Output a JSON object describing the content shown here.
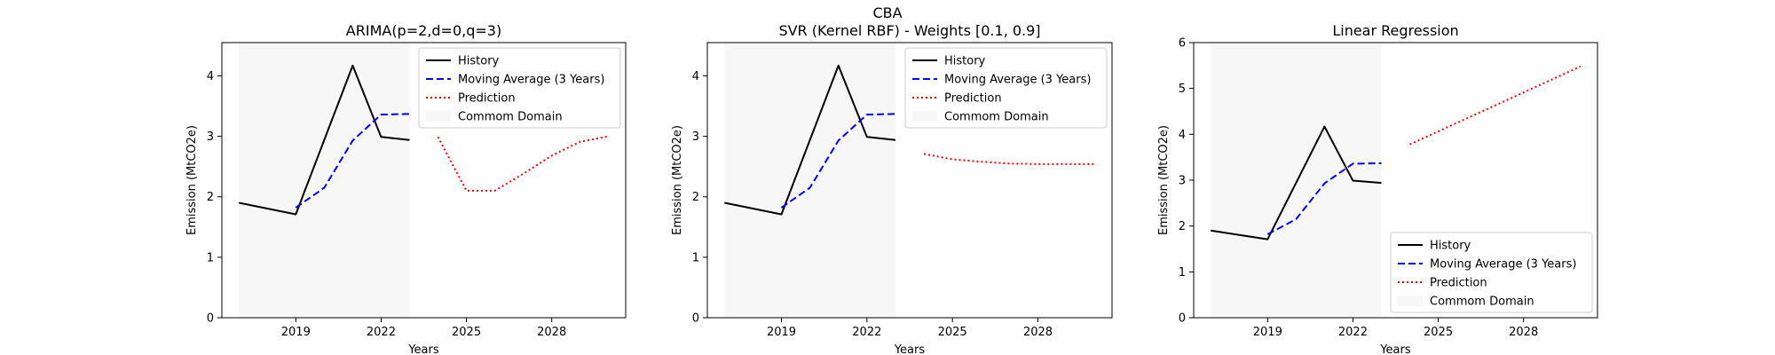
{
  "figure": {
    "suptitle": "CBA"
  },
  "chart_data": [
    {
      "type": "line",
      "title": "ARIMA(p=2,d=0,q=3)",
      "xlabel": "Years",
      "ylabel": "Emission (MtCO2e)",
      "xlim": [
        2016.4,
        2030.6
      ],
      "ylim": [
        0,
        4.55
      ],
      "xticks": [
        2019,
        2022,
        2025,
        2028
      ],
      "yticks": [
        0,
        1,
        2,
        3,
        4
      ],
      "legend": "top-right",
      "common_domain": [
        2017,
        2023
      ],
      "series": [
        {
          "name": "History",
          "color": "#000000",
          "dash": "solid",
          "points": [
            [
              2017,
              1.9
            ],
            [
              2019,
              1.71
            ],
            [
              2021,
              4.17
            ],
            [
              2022,
              2.99
            ],
            [
              2023,
              2.94
            ]
          ]
        },
        {
          "name": "Moving Average (3 Years)",
          "color": "#0000ff",
          "dash": "dashed",
          "points": [
            [
              2019,
              1.82
            ],
            [
              2020,
              2.15
            ],
            [
              2021,
              2.93
            ],
            [
              2022,
              3.36
            ],
            [
              2023,
              3.37
            ]
          ]
        },
        {
          "name": "Prediction",
          "color": "#ff0000",
          "dash": "dotted",
          "points": [
            [
              2024,
              2.99
            ],
            [
              2025,
              2.1
            ],
            [
              2026,
              2.1
            ],
            [
              2027,
              2.38
            ],
            [
              2028,
              2.68
            ],
            [
              2029,
              2.91
            ],
            [
              2030,
              3.0
            ]
          ]
        },
        {
          "name": "Commom Domain",
          "color": "#f7f7f7",
          "dash": "area",
          "points": []
        }
      ]
    },
    {
      "type": "line",
      "title": "SVR (Kernel RBF) - Weights [0.1, 0.9]",
      "xlabel": "Years",
      "ylabel": "Emission (MtCO2e)",
      "xlim": [
        2016.4,
        2030.6
      ],
      "ylim": [
        0,
        4.55
      ],
      "xticks": [
        2019,
        2022,
        2025,
        2028
      ],
      "yticks": [
        0,
        1,
        2,
        3,
        4
      ],
      "legend": "top-right",
      "common_domain": [
        2017,
        2023
      ],
      "series": [
        {
          "name": "History",
          "color": "#000000",
          "dash": "solid",
          "points": [
            [
              2017,
              1.9
            ],
            [
              2019,
              1.71
            ],
            [
              2021,
              4.17
            ],
            [
              2022,
              2.99
            ],
            [
              2023,
              2.94
            ]
          ]
        },
        {
          "name": "Moving Average (3 Years)",
          "color": "#0000ff",
          "dash": "dashed",
          "points": [
            [
              2019,
              1.82
            ],
            [
              2020,
              2.15
            ],
            [
              2021,
              2.93
            ],
            [
              2022,
              3.36
            ],
            [
              2023,
              3.37
            ]
          ]
        },
        {
          "name": "Prediction",
          "color": "#ff0000",
          "dash": "dotted",
          "points": [
            [
              2024,
              2.71
            ],
            [
              2025,
              2.62
            ],
            [
              2026,
              2.58
            ],
            [
              2027,
              2.55
            ],
            [
              2028,
              2.54
            ],
            [
              2029,
              2.54
            ],
            [
              2030,
              2.54
            ]
          ]
        },
        {
          "name": "Commom Domain",
          "color": "#f7f7f7",
          "dash": "area",
          "points": []
        }
      ]
    },
    {
      "type": "line",
      "title": "Linear Regression",
      "xlabel": "Years",
      "ylabel": "Emission (MtCO2e)",
      "xlim": [
        2016.4,
        2030.6
      ],
      "ylim": [
        0,
        6
      ],
      "xticks": [
        2019,
        2022,
        2025,
        2028
      ],
      "yticks": [
        0,
        1,
        2,
        3,
        4,
        5,
        6
      ],
      "legend": "bottom-right",
      "common_domain": [
        2017,
        2023
      ],
      "series": [
        {
          "name": "History",
          "color": "#000000",
          "dash": "solid",
          "points": [
            [
              2017,
              1.9
            ],
            [
              2019,
              1.71
            ],
            [
              2021,
              4.17
            ],
            [
              2022,
              2.99
            ],
            [
              2023,
              2.94
            ]
          ]
        },
        {
          "name": "Moving Average (3 Years)",
          "color": "#0000ff",
          "dash": "dashed",
          "points": [
            [
              2019,
              1.82
            ],
            [
              2020,
              2.15
            ],
            [
              2021,
              2.93
            ],
            [
              2022,
              3.36
            ],
            [
              2023,
              3.37
            ]
          ]
        },
        {
          "name": "Prediction",
          "color": "#ff0000",
          "dash": "dotted",
          "points": [
            [
              2024,
              3.78
            ],
            [
              2030,
              5.48
            ]
          ]
        },
        {
          "name": "Commom Domain",
          "color": "#f7f7f7",
          "dash": "area",
          "points": []
        }
      ]
    }
  ]
}
